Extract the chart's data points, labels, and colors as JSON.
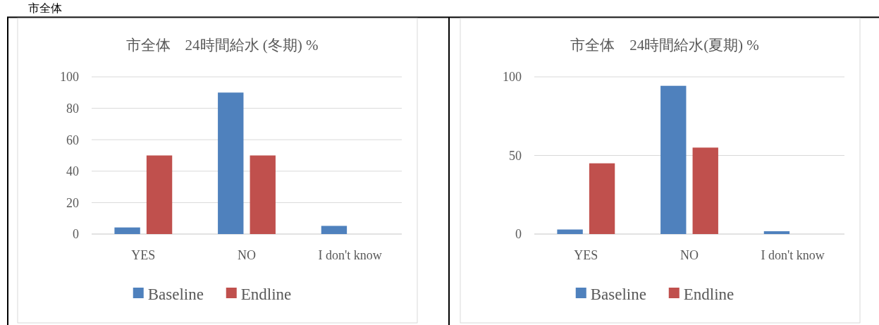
{
  "chart_data": [
    {
      "type": "bar",
      "title": "市全体　24時間給水 (冬期) %",
      "annotations": [
        "市全体"
      ],
      "categories": [
        "YES",
        "NO",
        "I don't know"
      ],
      "series": [
        {
          "name": "Baseline",
          "color": "#4f81bd",
          "values": [
            4.2,
            90,
            5.2
          ]
        },
        {
          "name": "Endline",
          "color": "#c0504d",
          "values": [
            50,
            50,
            0
          ]
        }
      ],
      "ylim": [
        0,
        100
      ],
      "yticks": [
        0,
        20,
        40,
        60,
        80,
        100
      ],
      "grid": "y",
      "legend": "bottom"
    },
    {
      "type": "bar",
      "title": "市全体　24時間給水(夏期) %",
      "categories": [
        "YES",
        "NO",
        "I don't know"
      ],
      "series": [
        {
          "name": "Baseline",
          "color": "#4f81bd",
          "values": [
            2.9,
            94.3,
            1.8
          ]
        },
        {
          "name": "Endline",
          "color": "#c0504d",
          "values": [
            45,
            55,
            0
          ]
        }
      ],
      "ylim": [
        0,
        100
      ],
      "yticks": [
        0,
        50,
        100
      ],
      "grid": "y",
      "legend": "bottom"
    }
  ]
}
